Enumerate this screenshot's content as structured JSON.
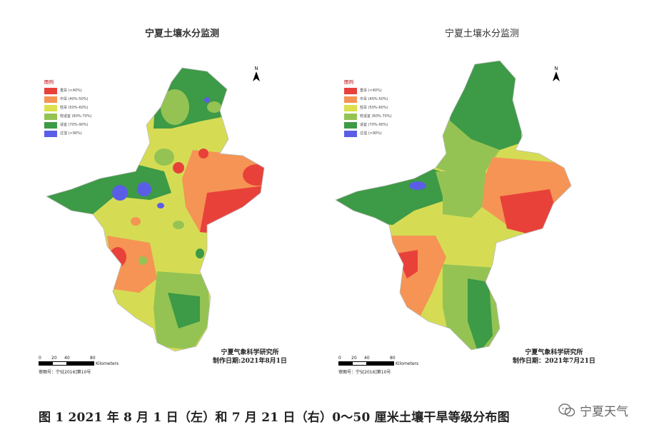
{
  "left_map": {
    "title": "宁夏土壤水分监测",
    "institute": "宁夏气象科学研究所",
    "date_line": "制作日期:2021年8月1日",
    "approval": "审图号：宁S[2016]第10号"
  },
  "right_map": {
    "title": "宁夏土壤水分监测",
    "institute": "宁夏气象科学研究所",
    "date_line": "制作日期：2021年7月21日",
    "approval": "审图号：宁S[2016]第10号"
  },
  "legend": {
    "title": "图例",
    "items": [
      {
        "label": "重旱 (<40%)",
        "color": "#e8413a"
      },
      {
        "label": "中旱 (40%-50%)",
        "color": "#f59454"
      },
      {
        "label": "轻旱 (50%-60%)",
        "color": "#dde04c"
      },
      {
        "label": "较适宜 (60%-70%)",
        "color": "#94c353"
      },
      {
        "label": "适宜 (70%-90%)",
        "color": "#3d9a46"
      },
      {
        "label": "过湿 (>90%)",
        "color": "#5a5ee6"
      }
    ]
  },
  "north_label": "N",
  "scale": {
    "ticks": [
      "0",
      "20",
      "40",
      "80"
    ],
    "unit": "Kilometers"
  },
  "caption": "图 1 2021 年 8 月 1 日（左）和 7 月 21 日（右）0～50 厘米土壤干旱等级分布图",
  "watermark": "宁夏天气"
}
